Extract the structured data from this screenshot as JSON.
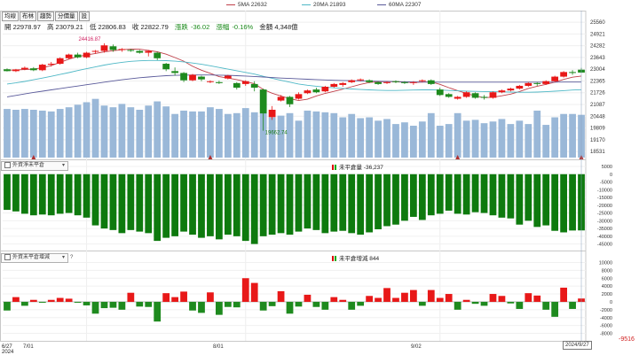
{
  "legend": {
    "ma5": {
      "label": "5MA 22632",
      "color": "#c0404a"
    },
    "ma20": {
      "label": "20MA 21893",
      "color": "#4fb8c6"
    },
    "ma60": {
      "label": "60MA 22307",
      "color": "#5a5a9a"
    }
  },
  "tabs": [
    "均線",
    "布林",
    "趨勢",
    "分價量",
    "設"
  ],
  "quote": {
    "open": "開 22978.97",
    "high": "高 23079.21",
    "low": "低 22806.83",
    "close": "收 22822.79",
    "change_label": "漲跌",
    "change": "-36.02",
    "pct_label": "漲幅",
    "pct": "-0.16%",
    "amount": "金額 4,348億"
  },
  "colors": {
    "up": "#e81818",
    "down": "#1e8a1e",
    "volume": "#9ab8d8",
    "panel2": "#0e7a0e",
    "panel3_up": "#e81818",
    "panel3_down": "#1e8a1e"
  },
  "panel2": {
    "selector": "外資淨未平倉",
    "title": "未平倉量 -36,237"
  },
  "panel3": {
    "selector": "外資未平倉增減",
    "help": "?",
    "title": "未平倉增減 844"
  },
  "annotations": {
    "high": "24416.87",
    "low": "19662.74"
  },
  "dates": {
    "first_day": "6/27",
    "first_year": "2024",
    "first_label": "7/01",
    "ticks": [
      "8/01",
      "9/02"
    ],
    "last": "2024/9/27"
  },
  "neg_label": "-9516",
  "chart_data": [
    {
      "type": "candlestick",
      "yticks": [
        25560,
        24921,
        24282,
        23643,
        23004,
        22365,
        21726,
        21087,
        20448,
        19809,
        19170,
        18531
      ],
      "ylim": [
        18200,
        25900
      ],
      "series": [
        {
          "name": "OHLC",
          "values": [
            [
              23000,
              23050,
              22880,
              22900
            ],
            [
              22900,
              23020,
              22850,
              22990
            ],
            [
              23000,
              23150,
              22950,
              23080
            ],
            [
              23050,
              23120,
              22900,
              22950
            ],
            [
              22950,
              23300,
              22900,
              23250
            ],
            [
              23250,
              23400,
              23150,
              23300
            ],
            [
              23300,
              23650,
              23250,
              23600
            ],
            [
              23600,
              23850,
              23550,
              23800
            ],
            [
              23800,
              23900,
              23600,
              23650
            ],
            [
              23650,
              23950,
              23600,
              23900
            ],
            [
              23950,
              24050,
              23850,
              24000
            ],
            [
              24000,
              24416,
              23900,
              24300
            ],
            [
              24250,
              24350,
              23950,
              24050
            ],
            [
              24050,
              24150,
              23950,
              24100
            ],
            [
              24050,
              24100,
              23950,
              24000
            ],
            [
              24000,
              24050,
              23850,
              23900
            ],
            [
              23900,
              24050,
              23700,
              24000
            ],
            [
              23900,
              23950,
              23500,
              23600
            ],
            [
              23300,
              23350,
              22900,
              23000
            ],
            [
              22900,
              23100,
              22650,
              22800
            ],
            [
              22800,
              22850,
              22300,
              22400
            ],
            [
              22400,
              22750,
              22350,
              22700
            ],
            [
              22600,
              22650,
              22350,
              22450
            ],
            [
              22350,
              22400,
              22250,
              22350
            ],
            [
              22300,
              22380,
              22200,
              22250
            ],
            [
              22500,
              22700,
              22450,
              22650
            ],
            [
              22250,
              22300,
              21900,
              22000
            ],
            [
              22200,
              22400,
              22100,
              22350
            ],
            [
              22200,
              22350,
              21800,
              22000
            ],
            [
              21900,
              21950,
              19662,
              20600
            ],
            [
              20400,
              21000,
              20250,
              20800
            ],
            [
              21300,
              21600,
              21250,
              21500
            ],
            [
              21500,
              21550,
              20950,
              21100
            ],
            [
              21400,
              21750,
              21350,
              21650
            ],
            [
              21700,
              21900,
              21650,
              21850
            ],
            [
              21900,
              22000,
              21700,
              21750
            ],
            [
              21800,
              22100,
              21750,
              22050
            ],
            [
              22050,
              22250,
              22000,
              22200
            ],
            [
              22150,
              22300,
              22050,
              22250
            ],
            [
              22300,
              22450,
              22250,
              22400
            ],
            [
              22400,
              22500,
              22350,
              22450
            ],
            [
              22400,
              22450,
              22250,
              22300
            ],
            [
              22300,
              22350,
              22150,
              22200
            ],
            [
              22250,
              22350,
              22200,
              22300
            ],
            [
              22350,
              22400,
              22250,
              22320
            ],
            [
              22300,
              22350,
              22200,
              22250
            ],
            [
              22280,
              22350,
              22150,
              22300
            ],
            [
              22350,
              22450,
              22300,
              22400
            ],
            [
              22400,
              22450,
              22150,
              22200
            ],
            [
              21900,
              22000,
              21550,
              21600
            ],
            [
              21650,
              21700,
              21450,
              21500
            ],
            [
              21400,
              21550,
              21350,
              21500
            ],
            [
              21500,
              21800,
              21450,
              21750
            ],
            [
              21700,
              21750,
              21400,
              21450
            ],
            [
              21500,
              21600,
              21350,
              21450
            ],
            [
              21450,
              21800,
              21400,
              21750
            ],
            [
              21750,
              21900,
              21700,
              21850
            ],
            [
              21850,
              22000,
              21800,
              21950
            ],
            [
              21950,
              22150,
              21900,
              22100
            ],
            [
              22100,
              22300,
              22050,
              22250
            ],
            [
              22250,
              22300,
              22100,
              22200
            ],
            [
              22200,
              22400,
              22150,
              22350
            ],
            [
              22350,
              22650,
              22300,
              22600
            ],
            [
              22600,
              22900,
              22550,
              22850
            ],
            [
              22850,
              22950,
              22700,
              22800
            ],
            [
              22978,
              23079,
              22806,
              22822
            ]
          ]
        },
        {
          "name": "5MA",
          "values": [
            22950,
            22960,
            22990,
            23010,
            23080,
            23200,
            23380,
            23550,
            23690,
            23780,
            23860,
            23950,
            24010,
            24060,
            24100,
            24090,
            24030,
            23950,
            23820,
            23640,
            23440,
            23160,
            22950,
            22780,
            22600,
            22520,
            22440,
            22330,
            22220,
            21900,
            21700,
            21550,
            21400,
            21300,
            21370,
            21550,
            21690,
            21800,
            21920,
            22050,
            22180,
            22280,
            22320,
            22330,
            22320,
            22300,
            22280,
            22300,
            22320,
            22180,
            22000,
            21840,
            21690,
            21550,
            21460,
            21480,
            21560,
            21650,
            21790,
            21960,
            22080,
            22180,
            22300,
            22450,
            22570,
            22632
          ]
        },
        {
          "name": "20MA",
          "values": [
            22200,
            22260,
            22340,
            22430,
            22520,
            22620,
            22720,
            22820,
            22930,
            23030,
            23130,
            23230,
            23310,
            23380,
            23430,
            23460,
            23480,
            23480,
            23470,
            23440,
            23400,
            23340,
            23270,
            23190,
            23100,
            23010,
            22920,
            22830,
            22740,
            22620,
            22510,
            22400,
            22300,
            22200,
            22130,
            22080,
            22030,
            21990,
            21960,
            21930,
            21900,
            21880,
            21860,
            21850,
            21850,
            21860,
            21870,
            21880,
            21880,
            21870,
            21850,
            21830,
            21810,
            21800,
            21790,
            21780,
            21770,
            21760,
            21750,
            21750,
            21760,
            21780,
            21810,
            21840,
            21870,
            21893
          ]
        },
        {
          "name": "60MA",
          "values": [
            21500,
            21580,
            21660,
            21740,
            21810,
            21880,
            21950,
            22020,
            22090,
            22160,
            22230,
            22300,
            22370,
            22430,
            22490,
            22540,
            22580,
            22620,
            22650,
            22670,
            22680,
            22690,
            22690,
            22690,
            22680,
            22670,
            22650,
            22630,
            22610,
            22580,
            22550,
            22520,
            22500,
            22480,
            22460,
            22440,
            22420,
            22400,
            22390,
            22380,
            22370,
            22360,
            22350,
            22340,
            22330,
            22320,
            22310,
            22305,
            22300,
            22300,
            22300,
            22300,
            22300,
            22300,
            22300,
            22300,
            22300,
            22300,
            22300,
            22300,
            22300,
            22300,
            22300,
            22303,
            22305,
            22307
          ]
        }
      ]
    },
    {
      "type": "bar",
      "series": [
        {
          "name": "Volume",
          "values": [
            2900,
            2850,
            2900,
            2850,
            2800,
            2750,
            2900,
            3000,
            3150,
            3300,
            3500,
            3100,
            3000,
            3200,
            3000,
            2850,
            3100,
            3350,
            3050,
            2600,
            2800,
            2750,
            2750,
            3000,
            2900,
            2600,
            2650,
            2950,
            2700,
            2650,
            2400,
            2500,
            2650,
            2200,
            2800,
            2750,
            2700,
            2650,
            2400,
            2600,
            2350,
            2400,
            2200,
            2300,
            2000,
            2100,
            1900,
            2150,
            2650,
            1900,
            2000,
            2650,
            2200,
            2250,
            2050,
            2150,
            2300,
            2000,
            2200,
            2000,
            2800,
            1950,
            2400,
            2600,
            2600,
            2550
          ]
        }
      ]
    },
    {
      "type": "bar",
      "yticks": [
        5000,
        0,
        -5000,
        -10000,
        -15000,
        -20000,
        -25000,
        -30000,
        -35000,
        -40000,
        -45000
      ],
      "ylim": [
        -47500,
        5000
      ],
      "series": [
        {
          "name": "未平倉量",
          "values": [
            -23000,
            -24000,
            -25500,
            -26500,
            -26000,
            -26500,
            -25500,
            -25000,
            -26500,
            -28000,
            -33000,
            -35000,
            -36000,
            -38000,
            -36000,
            -37000,
            -38000,
            -43000,
            -41000,
            -40000,
            -37000,
            -39000,
            -41000,
            -40000,
            -42000,
            -39000,
            -40000,
            -43000,
            -45000,
            -40000,
            -39000,
            -38000,
            -39000,
            -37000,
            -35000,
            -36000,
            -38000,
            -37000,
            -36500,
            -38000,
            -39000,
            -37500,
            -35500,
            -33500,
            -32500,
            -30000,
            -27500,
            -29500,
            -26500,
            -25500,
            -23500,
            -25500,
            -26000,
            -24500,
            -25000,
            -26500,
            -28000,
            -28500,
            -32500,
            -30000,
            -34000,
            -33000,
            -36500,
            -37500,
            -36300,
            -36237
          ]
        }
      ]
    },
    {
      "type": "bar",
      "yticks": [
        10000,
        8000,
        6000,
        4000,
        2000,
        0,
        -2000,
        -4000,
        -6000,
        -8000
      ],
      "ylim": [
        -9000,
        11000
      ],
      "series": [
        {
          "name": "未平倉增減",
          "values": [
            -2200,
            1200,
            -1000,
            500,
            -200,
            500,
            1000,
            800,
            -200,
            -900,
            -3000,
            -1600,
            -1500,
            -2000,
            2300,
            -1200,
            -1300,
            -5000,
            2200,
            1200,
            2600,
            -2200,
            -2800,
            2400,
            -3300,
            -1300,
            -1400,
            6000,
            4800,
            -2200,
            -1100,
            2700,
            -3000,
            -1200,
            1800,
            -1300,
            -2000,
            1200,
            500,
            -2000,
            -1000,
            1500,
            1000,
            3500,
            1000,
            2300,
            3000,
            -1000,
            3000,
            1000,
            2000,
            -2000,
            500,
            -500,
            -1000,
            2000,
            1500,
            -400,
            -1800,
            2200,
            1600,
            -2000,
            -3800,
            3600,
            -1800,
            844
          ]
        }
      ]
    }
  ]
}
